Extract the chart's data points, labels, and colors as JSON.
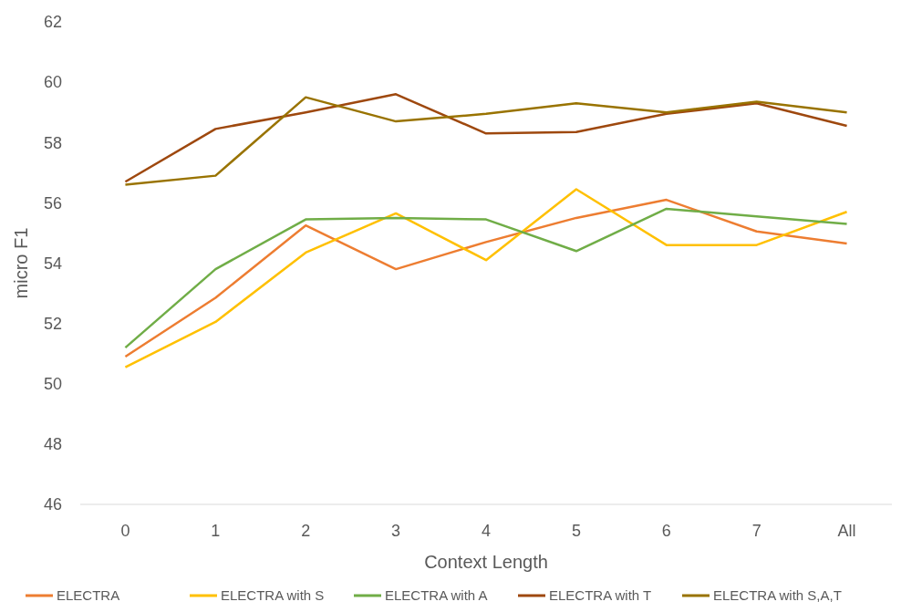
{
  "chart_data": {
    "type": "line",
    "xlabel": "Context Length",
    "ylabel": "micro F1",
    "categories": [
      "0",
      "1",
      "2",
      "3",
      "4",
      "5",
      "6",
      "7",
      "All"
    ],
    "ylim": [
      46,
      62
    ],
    "yticks": [
      46,
      48,
      50,
      52,
      54,
      56,
      58,
      60,
      62
    ],
    "legend": "bottom",
    "marker": "none",
    "series": [
      {
        "name": "ELECTRA",
        "color": "#ed7d31",
        "values": [
          50.9,
          52.85,
          55.25,
          53.8,
          54.7,
          55.5,
          56.1,
          55.05,
          54.65
        ]
      },
      {
        "name": "ELECTRA with S",
        "color": "#ffc000",
        "values": [
          50.55,
          52.05,
          54.35,
          55.65,
          54.1,
          56.45,
          54.6,
          54.6,
          55.7
        ]
      },
      {
        "name": "ELECTRA with A",
        "color": "#70ad47",
        "values": [
          51.2,
          53.8,
          55.45,
          55.5,
          55.45,
          54.4,
          55.8,
          55.55,
          55.3
        ]
      },
      {
        "name": "ELECTRA with T",
        "color": "#9e480e",
        "values": [
          56.7,
          58.45,
          59.0,
          59.6,
          58.3,
          58.35,
          58.95,
          59.3,
          58.55
        ]
      },
      {
        "name": "ELECTRA with S,A,T",
        "color": "#997300",
        "values": [
          56.6,
          56.9,
          59.5,
          58.7,
          58.95,
          59.3,
          59.0,
          59.35,
          59.0
        ]
      }
    ]
  }
}
